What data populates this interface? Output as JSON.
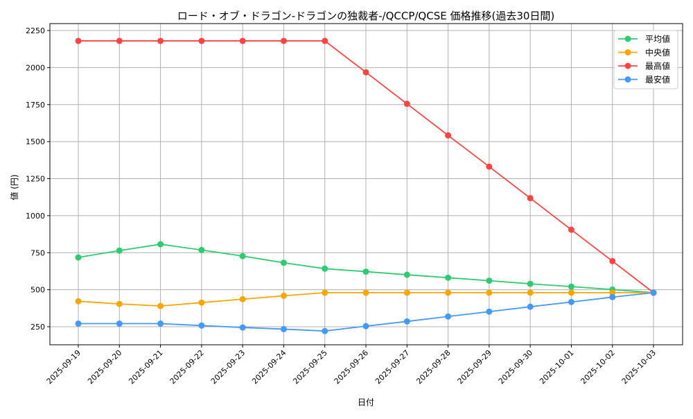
{
  "chart_data": {
    "type": "line",
    "title": "ロード・オブ・ドラゴン-ドラゴンの独裁者-/QCCP/QCSE 価格推移(過去30日間)",
    "xlabel": "日付",
    "ylabel": "値 (円)",
    "ylim": [
      125,
      2300
    ],
    "yticks": [
      250,
      500,
      750,
      1000,
      1250,
      1500,
      1750,
      2000,
      2250
    ],
    "grid": true,
    "legend_position": "top-right",
    "categories": [
      "2025-09-19",
      "2025-09-20",
      "2025-09-21",
      "2025-09-22",
      "2025-09-23",
      "2025-09-24",
      "2025-09-25",
      "2025-09-26",
      "2025-09-27",
      "2025-09-28",
      "2025-09-29",
      "2025-09-30",
      "2025-10-01",
      "2025-10-02",
      "2025-10-03"
    ],
    "series": [
      {
        "name": "平均値",
        "color": "#2ecc71",
        "values": [
          718,
          764,
          807,
          768,
          727,
          682,
          642,
          622,
          601,
          581,
          561,
          540,
          521,
          501,
          480
        ]
      },
      {
        "name": "中央値",
        "color": "#ffa500",
        "values": [
          422,
          404,
          390,
          413,
          436,
          459,
          480,
          480,
          480,
          480,
          480,
          480,
          480,
          480,
          480
        ]
      },
      {
        "name": "最高値",
        "color": "#ff4444",
        "values": [
          2180,
          2180,
          2180,
          2180,
          2180,
          2180,
          2180,
          1968,
          1755,
          1542,
          1331,
          1118,
          905,
          693,
          480
        ]
      },
      {
        "name": "最安値",
        "color": "#4499ff",
        "values": [
          271,
          271,
          271,
          258,
          245,
          234,
          221,
          254,
          286,
          319,
          352,
          385,
          417,
          450,
          480
        ]
      }
    ]
  }
}
